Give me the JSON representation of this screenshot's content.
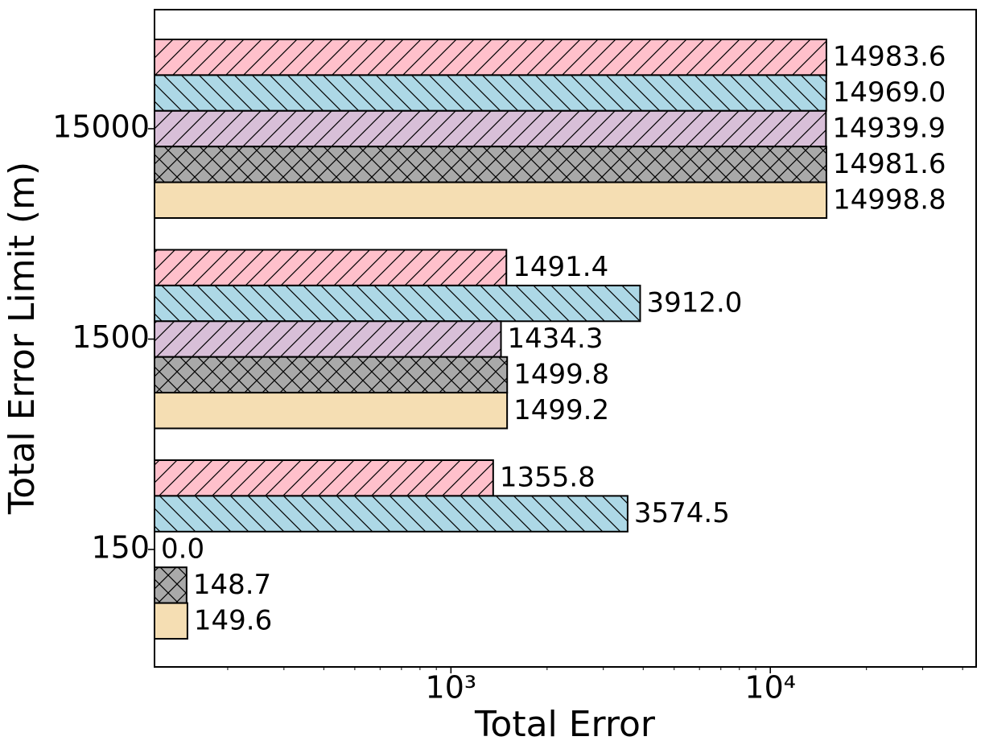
{
  "chart_data": {
    "type": "hbar",
    "orientation": "horizontal",
    "xlabel": "Total Error",
    "ylabel": "Total Error Limit (m)",
    "categories": [
      "150",
      "1500",
      "15000"
    ],
    "xscale": "log",
    "xlim": [
      118,
      44100
    ],
    "xticks": [
      {
        "value": 1000,
        "label": "10³"
      },
      {
        "value": 10000,
        "label": "10⁴"
      }
    ],
    "xminorticks": [
      200,
      300,
      400,
      500,
      600,
      700,
      800,
      900,
      2000,
      3000,
      4000,
      5000,
      6000,
      7000,
      8000,
      9000,
      20000,
      30000,
      40000
    ],
    "grid": false,
    "series": [
      {
        "color": "#ffc0cb",
        "hatch": "/",
        "values": [
          1355.8,
          1491.4,
          14983.6
        ],
        "value_labels": [
          "1355.8",
          "1491.4",
          "14983.6"
        ]
      },
      {
        "color": "#add8e6",
        "hatch": "\\",
        "values": [
          3574.5,
          3912.0,
          14969.0
        ],
        "value_labels": [
          "3574.5",
          "3912.0",
          "14969.0"
        ]
      },
      {
        "color": "#d8bfd8",
        "hatch": "/",
        "values": [
          0.0,
          1434.3,
          14939.9
        ],
        "value_labels": [
          "0.0",
          "1434.3",
          "14939.9"
        ]
      },
      {
        "color": "#a9a9a9",
        "hatch": "x",
        "values": [
          148.7,
          1499.8,
          14981.6
        ],
        "value_labels": [
          "148.7",
          "1499.8",
          "14981.6"
        ]
      },
      {
        "color": "#f5deb3",
        "hatch": "",
        "values": [
          149.6,
          1499.2,
          14998.8
        ],
        "value_labels": [
          "149.6",
          "1499.2",
          "14998.8"
        ]
      }
    ]
  }
}
